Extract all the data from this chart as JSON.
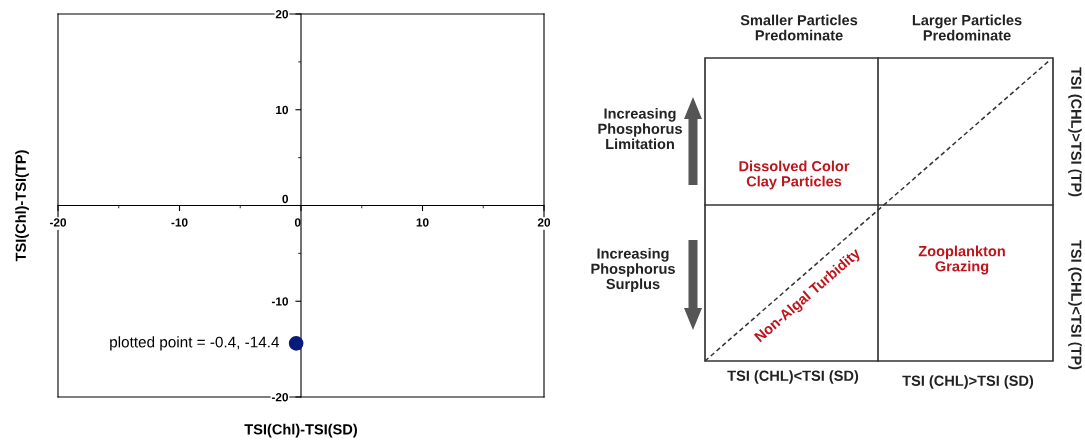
{
  "chart_data": [
    {
      "type": "scatter",
      "xlabel": "TSI(Chl)-TSI(SD)",
      "ylabel": "TSI(Chl)-TSI(TP)",
      "series": [
        {
          "color": "#0a1a7a",
          "x": [
            -0.4
          ],
          "values": [
            -14.4
          ]
        }
      ],
      "marker": "circle",
      "grid": false,
      "legend": false,
      "xlim": [
        -20,
        20
      ],
      "ylim": [
        -20,
        20
      ],
      "xticks": [
        -20,
        -10,
        0,
        10,
        20
      ],
      "yticks": [
        -20,
        -10,
        0,
        10,
        20
      ],
      "annotations": [
        {
          "text": "plotted point = -0.4, -14.4",
          "x": -0.4,
          "y": -14.4
        }
      ]
    },
    {
      "type": "other",
      "annotations": [
        "Smaller Particles\nPredominate",
        "Larger Particles\nPredominate",
        "Increasing\nPhosphorus\nLimitation",
        "Dissolved Color\nClay Particles",
        "Increasing\nPhosphorus\nSurplus",
        "Non-Algal Turbidity",
        "Zooplankton\nGrazing",
        "TSI (CHL)<TSI (SD)",
        "TSI (CHL)>TSI (SD)",
        "TSI (CHL)>TSI (TP)",
        "TSI (CHL)<TSI (TP)"
      ]
    }
  ]
}
